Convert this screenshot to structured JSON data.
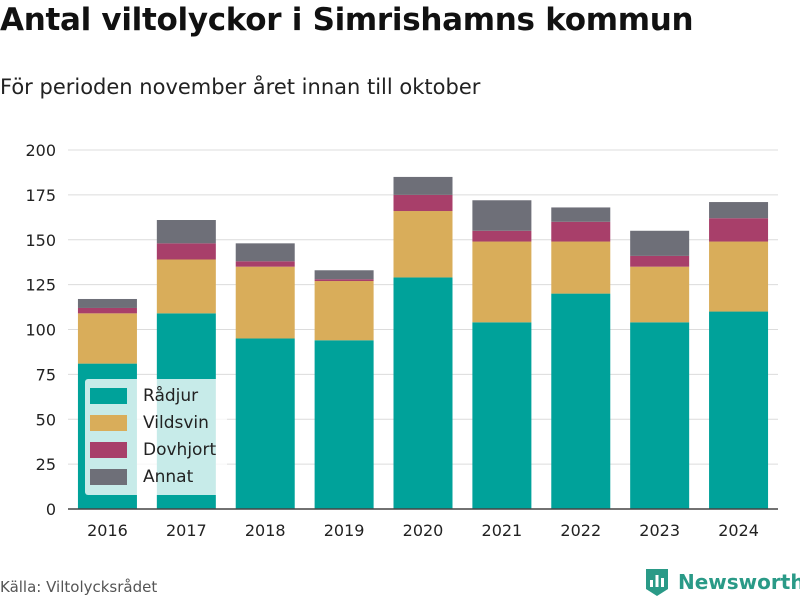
{
  "title": "Antal viltolyckor i Simrishamns kommun",
  "subtitle": "För perioden november året innan till oktober",
  "source": "Källa: Viltolycksrådet",
  "brand": {
    "name": "Newsworthy",
    "logo_icon": "bar-chart-logo-icon",
    "color": "#2a9a87"
  },
  "chart_data": {
    "type": "bar",
    "stacked": true,
    "categories": [
      "2016",
      "2017",
      "2018",
      "2019",
      "2020",
      "2021",
      "2022",
      "2023",
      "2024"
    ],
    "series": [
      {
        "name": "Rådjur",
        "color": "#00a29a",
        "values": [
          81,
          109,
          95,
          94,
          129,
          104,
          120,
          104,
          110
        ]
      },
      {
        "name": "Vildsvin",
        "color": "#d9ad5a",
        "values": [
          28,
          30,
          40,
          33,
          37,
          45,
          29,
          31,
          39
        ]
      },
      {
        "name": "Dovhjort",
        "color": "#a83f6a",
        "values": [
          3,
          9,
          3,
          1,
          9,
          6,
          11,
          6,
          13
        ]
      },
      {
        "name": "Annat",
        "color": "#6e6f78",
        "values": [
          5,
          13,
          10,
          5,
          10,
          17,
          8,
          14,
          9
        ]
      }
    ],
    "ylim": [
      0,
      200
    ],
    "yticks": [
      "0",
      "25",
      "50",
      "75",
      "100",
      "125",
      "150",
      "175",
      "200"
    ],
    "grid": true,
    "legend_position": "bottom-left"
  }
}
